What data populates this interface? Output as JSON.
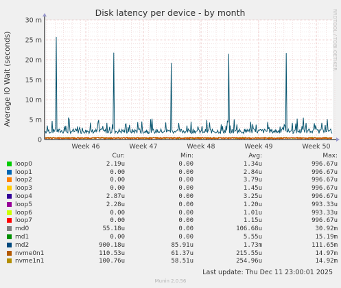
{
  "chart_data": {
    "type": "line",
    "title": "Disk latency per device - by month",
    "ylabel": "Average IO Wait (seconds)",
    "watermark": "RRDTOOL / TOBI OETIKER",
    "ylim": [
      0,
      0.03
    ],
    "y_ticks": [
      {
        "value": 0,
        "label": "0"
      },
      {
        "value": 0.005,
        "label": "5 m"
      },
      {
        "value": 0.01,
        "label": "10 m"
      },
      {
        "value": 0.015,
        "label": "15 m"
      },
      {
        "value": 0.02,
        "label": "20 m"
      },
      {
        "value": 0.025,
        "label": "25 m"
      },
      {
        "value": 0.03,
        "label": "30 m"
      }
    ],
    "x_ticks": [
      "Week 46",
      "Week 47",
      "Week 48",
      "Week 49",
      "Week 50"
    ],
    "series": [
      {
        "name": "md2",
        "color": "#0a5670",
        "baseline": 0.0015,
        "peak_avg": 0.0035,
        "spikes": [
          0.0257,
          0.0218,
          0.0192,
          0.0215,
          0.0217
        ],
        "max": 0.11165
      },
      {
        "name": "nvme1n1",
        "color": "#a07f00",
        "level": 0.00025
      },
      {
        "name": "nvme0n1",
        "color": "#cc5200",
        "level": 0.00022
      }
    ],
    "legend": {
      "headers": [
        "Cur:",
        "Min:",
        "Avg:",
        "Max:"
      ],
      "rows": [
        {
          "name": "loop0",
          "color": "#00cc00",
          "cur": "2.19u",
          "min": "0.00",
          "avg": "1.34u",
          "max": "996.67u"
        },
        {
          "name": "loop1",
          "color": "#0066b3",
          "cur": "0.00",
          "min": "0.00",
          "avg": "2.84u",
          "max": "996.67u"
        },
        {
          "name": "loop2",
          "color": "#ff8000",
          "cur": "0.00",
          "min": "0.00",
          "avg": "3.79u",
          "max": "996.67u"
        },
        {
          "name": "loop3",
          "color": "#ffcc00",
          "cur": "0.00",
          "min": "0.00",
          "avg": "1.45u",
          "max": "996.67u"
        },
        {
          "name": "loop4",
          "color": "#330099",
          "cur": "2.87u",
          "min": "0.00",
          "avg": "3.25u",
          "max": "996.67u"
        },
        {
          "name": "loop5",
          "color": "#990099",
          "cur": "2.28u",
          "min": "0.00",
          "avg": "1.20u",
          "max": "993.33u"
        },
        {
          "name": "loop6",
          "color": "#ccff00",
          "cur": "0.00",
          "min": "0.00",
          "avg": "1.01u",
          "max": "993.33u"
        },
        {
          "name": "loop7",
          "color": "#ff0000",
          "cur": "0.00",
          "min": "0.00",
          "avg": "1.15u",
          "max": "996.67u"
        },
        {
          "name": "md0",
          "color": "#808080",
          "cur": "55.18u",
          "min": "0.00",
          "avg": "106.68u",
          "max": "30.92m"
        },
        {
          "name": "md1",
          "color": "#008f00",
          "cur": "0.00",
          "min": "0.00",
          "avg": "5.55u",
          "max": "15.19m"
        },
        {
          "name": "md2",
          "color": "#00487d",
          "cur": "900.18u",
          "min": "85.91u",
          "avg": "1.73m",
          "max": "111.65m"
        },
        {
          "name": "nvme0n1",
          "color": "#b35a00",
          "cur": "110.53u",
          "min": "61.37u",
          "avg": "215.55u",
          "max": "14.97m"
        },
        {
          "name": "nvme1n1",
          "color": "#b38f00",
          "cur": "100.76u",
          "min": "58.51u",
          "avg": "254.96u",
          "max": "14.92m"
        }
      ]
    }
  },
  "footer": {
    "last_update": "Last update: Thu Dec 11 23:00:01 2025",
    "munin_version": "Munin 2.0.56"
  }
}
